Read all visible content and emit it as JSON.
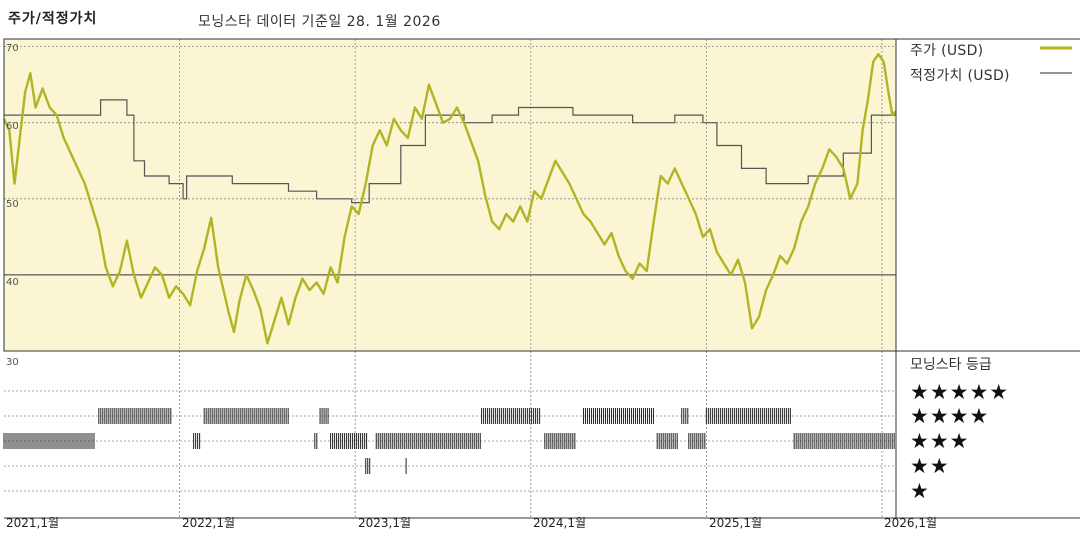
{
  "header": {
    "title": "주가/적정가치",
    "subtitle": "모닝스타 데이터 기준일 28. 1월 2026"
  },
  "legend": {
    "price_label": "주가 (USD)",
    "fair_label": "적정가치 (USD)",
    "price_color": "#b3b424",
    "fair_color": "#555555"
  },
  "rating_panel": {
    "title": "모닝스타 등급",
    "levels": [
      {
        "stars": 5,
        "glyphs": "★★★★★"
      },
      {
        "stars": 4,
        "glyphs": "★★★★"
      },
      {
        "stars": 3,
        "glyphs": "★★★"
      },
      {
        "stars": 2,
        "glyphs": "★★"
      },
      {
        "stars": 1,
        "glyphs": "★"
      }
    ]
  },
  "chart_data": {
    "type": "line",
    "x_axis": {
      "min": 2021.0,
      "max": 2026.08,
      "ticks": [
        {
          "value": 2021.0,
          "label": "2021,1월"
        },
        {
          "value": 2022.0,
          "label": "2022,1월"
        },
        {
          "value": 2023.0,
          "label": "2023,1월"
        },
        {
          "value": 2024.0,
          "label": "2024,1월"
        },
        {
          "value": 2025.0,
          "label": "2025,1월"
        },
        {
          "value": 2026.0,
          "label": "2026,1월"
        }
      ]
    },
    "y_axis": {
      "min": 30,
      "max": 71,
      "ticks": [
        {
          "value": 70,
          "label": "70"
        },
        {
          "value": 60,
          "label": "60"
        },
        {
          "value": 50,
          "label": "50"
        },
        {
          "value": 40,
          "label": "40"
        },
        {
          "value": 30,
          "label": "30"
        }
      ]
    },
    "grid": true,
    "background_color": "#faf5d2",
    "series": [
      {
        "name": "주가 (USD)",
        "color": "#b3b424",
        "points": [
          [
            2021.0,
            60.5
          ],
          [
            2021.03,
            59.0
          ],
          [
            2021.06,
            52.0
          ],
          [
            2021.09,
            58.0
          ],
          [
            2021.12,
            64.0
          ],
          [
            2021.15,
            66.5
          ],
          [
            2021.18,
            62.0
          ],
          [
            2021.22,
            64.5
          ],
          [
            2021.26,
            62.0
          ],
          [
            2021.3,
            61.0
          ],
          [
            2021.34,
            58.0
          ],
          [
            2021.38,
            56.0
          ],
          [
            2021.42,
            54.0
          ],
          [
            2021.46,
            52.0
          ],
          [
            2021.5,
            49.0
          ],
          [
            2021.54,
            46.0
          ],
          [
            2021.58,
            41.0
          ],
          [
            2021.62,
            38.5
          ],
          [
            2021.66,
            40.5
          ],
          [
            2021.7,
            44.5
          ],
          [
            2021.74,
            40.0
          ],
          [
            2021.78,
            37.0
          ],
          [
            2021.82,
            39.0
          ],
          [
            2021.86,
            41.0
          ],
          [
            2021.9,
            40.0
          ],
          [
            2021.94,
            37.0
          ],
          [
            2021.98,
            38.5
          ],
          [
            2022.02,
            37.5
          ],
          [
            2022.06,
            36.0
          ],
          [
            2022.1,
            40.5
          ],
          [
            2022.14,
            43.5
          ],
          [
            2022.18,
            47.5
          ],
          [
            2022.22,
            41.0
          ],
          [
            2022.25,
            38.0
          ],
          [
            2022.28,
            35.0
          ],
          [
            2022.31,
            32.5
          ],
          [
            2022.34,
            36.5
          ],
          [
            2022.38,
            40.0
          ],
          [
            2022.42,
            38.0
          ],
          [
            2022.46,
            35.5
          ],
          [
            2022.5,
            31.0
          ],
          [
            2022.54,
            34.0
          ],
          [
            2022.58,
            37.0
          ],
          [
            2022.62,
            33.5
          ],
          [
            2022.66,
            37.0
          ],
          [
            2022.7,
            39.5
          ],
          [
            2022.74,
            38.0
          ],
          [
            2022.78,
            39.0
          ],
          [
            2022.82,
            37.5
          ],
          [
            2022.86,
            41.0
          ],
          [
            2022.9,
            39.0
          ],
          [
            2022.94,
            45.0
          ],
          [
            2022.98,
            49.0
          ],
          [
            2023.02,
            48.0
          ],
          [
            2023.06,
            52.0
          ],
          [
            2023.1,
            57.0
          ],
          [
            2023.14,
            59.0
          ],
          [
            2023.18,
            57.0
          ],
          [
            2023.22,
            60.5
          ],
          [
            2023.26,
            59.0
          ],
          [
            2023.3,
            58.0
          ],
          [
            2023.34,
            62.0
          ],
          [
            2023.38,
            60.5
          ],
          [
            2023.42,
            65.0
          ],
          [
            2023.46,
            62.5
          ],
          [
            2023.5,
            60.0
          ],
          [
            2023.54,
            60.5
          ],
          [
            2023.58,
            62.0
          ],
          [
            2023.62,
            60.0
          ],
          [
            2023.66,
            57.5
          ],
          [
            2023.7,
            55.0
          ],
          [
            2023.74,
            50.5
          ],
          [
            2023.78,
            47.0
          ],
          [
            2023.82,
            46.0
          ],
          [
            2023.86,
            48.0
          ],
          [
            2023.9,
            47.0
          ],
          [
            2023.94,
            49.0
          ],
          [
            2023.98,
            47.0
          ],
          [
            2024.02,
            51.0
          ],
          [
            2024.06,
            50.0
          ],
          [
            2024.1,
            52.5
          ],
          [
            2024.14,
            55.0
          ],
          [
            2024.18,
            53.5
          ],
          [
            2024.22,
            52.0
          ],
          [
            2024.26,
            50.0
          ],
          [
            2024.3,
            48.0
          ],
          [
            2024.34,
            47.0
          ],
          [
            2024.38,
            45.5
          ],
          [
            2024.42,
            44.0
          ],
          [
            2024.46,
            45.5
          ],
          [
            2024.5,
            42.5
          ],
          [
            2024.54,
            40.5
          ],
          [
            2024.58,
            39.5
          ],
          [
            2024.62,
            41.5
          ],
          [
            2024.66,
            40.5
          ],
          [
            2024.7,
            47.0
          ],
          [
            2024.74,
            53.0
          ],
          [
            2024.78,
            52.0
          ],
          [
            2024.82,
            54.0
          ],
          [
            2024.86,
            52.0
          ],
          [
            2024.9,
            50.0
          ],
          [
            2024.94,
            48.0
          ],
          [
            2024.98,
            45.0
          ],
          [
            2025.02,
            46.0
          ],
          [
            2025.06,
            43.0
          ],
          [
            2025.1,
            41.5
          ],
          [
            2025.14,
            40.0
          ],
          [
            2025.18,
            42.0
          ],
          [
            2025.22,
            39.0
          ],
          [
            2025.26,
            33.0
          ],
          [
            2025.3,
            34.5
          ],
          [
            2025.34,
            38.0
          ],
          [
            2025.38,
            40.0
          ],
          [
            2025.42,
            42.5
          ],
          [
            2025.46,
            41.5
          ],
          [
            2025.5,
            43.5
          ],
          [
            2025.54,
            47.0
          ],
          [
            2025.58,
            49.0
          ],
          [
            2025.62,
            52.0
          ],
          [
            2025.66,
            54.0
          ],
          [
            2025.7,
            56.5
          ],
          [
            2025.74,
            55.5
          ],
          [
            2025.78,
            54.0
          ],
          [
            2025.82,
            50.0
          ],
          [
            2025.86,
            52.0
          ],
          [
            2025.89,
            59.0
          ],
          [
            2025.92,
            63.0
          ],
          [
            2025.95,
            68.0
          ],
          [
            2025.98,
            69.0
          ],
          [
            2026.01,
            68.0
          ],
          [
            2026.04,
            63.5
          ],
          [
            2026.06,
            61.0
          ],
          [
            2026.08,
            61.5
          ]
        ]
      },
      {
        "name": "적정가치 (USD)",
        "color": "#555555",
        "steps": [
          [
            2021.0,
            61.0
          ],
          [
            2021.55,
            63.0
          ],
          [
            2021.7,
            61.0
          ],
          [
            2021.74,
            55.0
          ],
          [
            2021.8,
            53.0
          ],
          [
            2021.94,
            52.0
          ],
          [
            2022.02,
            50.0
          ],
          [
            2022.04,
            53.0
          ],
          [
            2022.3,
            52.0
          ],
          [
            2022.62,
            51.0
          ],
          [
            2022.78,
            50.0
          ],
          [
            2022.98,
            49.5
          ],
          [
            2023.08,
            52.0
          ],
          [
            2023.26,
            57.0
          ],
          [
            2023.4,
            61.0
          ],
          [
            2023.62,
            60.0
          ],
          [
            2023.78,
            61.0
          ],
          [
            2023.93,
            62.0
          ],
          [
            2024.24,
            61.0
          ],
          [
            2024.58,
            60.0
          ],
          [
            2024.82,
            61.0
          ],
          [
            2024.98,
            60.0
          ],
          [
            2025.06,
            57.0
          ],
          [
            2025.2,
            54.0
          ],
          [
            2025.34,
            52.0
          ],
          [
            2025.58,
            53.0
          ],
          [
            2025.78,
            56.0
          ],
          [
            2025.94,
            61.0
          ]
        ]
      }
    ],
    "rating_history": [
      {
        "stars": 4,
        "start": 2021.54,
        "end": 2021.96
      },
      {
        "stars": 4,
        "start": 2022.14,
        "end": 2022.62
      },
      {
        "stars": 4,
        "start": 2022.8,
        "end": 2022.85
      },
      {
        "stars": 4,
        "start": 2023.72,
        "end": 2024.06
      },
      {
        "stars": 4,
        "start": 2024.3,
        "end": 2024.7
      },
      {
        "stars": 4,
        "start": 2024.86,
        "end": 2024.9
      },
      {
        "stars": 4,
        "start": 2025.0,
        "end": 2025.48
      },
      {
        "stars": 3,
        "start": 2021.0,
        "end": 2021.52
      },
      {
        "stars": 3,
        "start": 2022.08,
        "end": 2022.12
      },
      {
        "stars": 3,
        "start": 2022.77,
        "end": 2022.79
      },
      {
        "stars": 3,
        "start": 2022.86,
        "end": 2023.07
      },
      {
        "stars": 3,
        "start": 2023.12,
        "end": 2023.72
      },
      {
        "stars": 3,
        "start": 2024.08,
        "end": 2024.26
      },
      {
        "stars": 3,
        "start": 2024.72,
        "end": 2024.84
      },
      {
        "stars": 3,
        "start": 2024.9,
        "end": 2025.0
      },
      {
        "stars": 3,
        "start": 2025.5,
        "end": 2026.08
      },
      {
        "stars": 2,
        "start": 2023.06,
        "end": 2023.09
      },
      {
        "stars": 2,
        "start": 2023.29,
        "end": 2023.3
      }
    ]
  }
}
